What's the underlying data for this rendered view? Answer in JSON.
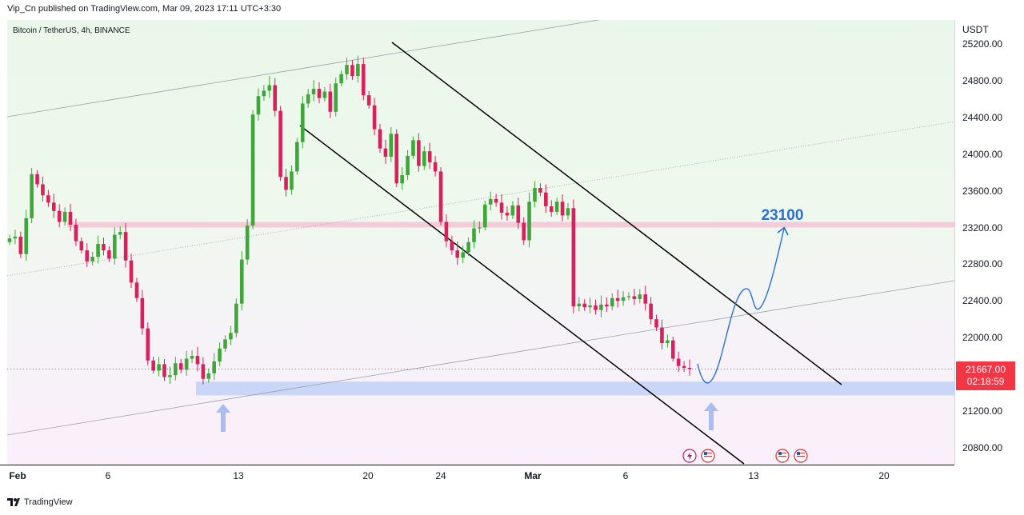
{
  "header": {
    "published_by": "Vip_Cn published on TradingView.com, Mar 09, 2023 17:11 UTC+3:30",
    "symbol_title": "Bitcoin / TetherUS, 4h, BINANCE"
  },
  "footer": {
    "brand": "TradingView"
  },
  "chart_data": {
    "type": "candlestick",
    "title": "Bitcoin / TetherUS, 4h, BINANCE",
    "currency": "USDT",
    "ylim": [
      20700,
      25420
    ],
    "y_ticks": [
      "25200.00",
      "24800.00",
      "24400.00",
      "24000.00",
      "23600.00",
      "23200.00",
      "22800.00",
      "22400.00",
      "22000.00",
      "21200.00",
      "20800.00"
    ],
    "x_ticks": [
      "Feb",
      "6",
      "13",
      "20",
      "24",
      "Mar",
      "6",
      "13",
      "20"
    ],
    "last_price": "21667.00",
    "countdown": "02:18:59",
    "target_label": "23100",
    "resistance_zone": [
      23210,
      23270
    ],
    "support_zone": [
      21380,
      21530
    ],
    "colors": {
      "up": "#26a69a",
      "up_green": "#3fa63a",
      "down": "#d91f5c",
      "target_text": "#2a6fd6",
      "arrow": "#a9bdf0"
    },
    "ohlc_path_close": [
      23090,
      23110,
      22920,
      23310,
      23790,
      23680,
      23560,
      23480,
      23390,
      23270,
      23380,
      23240,
      23060,
      22960,
      22840,
      22890,
      23030,
      22960,
      22870,
      23130,
      23160,
      22850,
      22610,
      22440,
      22110,
      21760,
      21650,
      21720,
      21580,
      21600,
      21730,
      21660,
      21780,
      21810,
      21720,
      21560,
      21620,
      21750,
      21890,
      21990,
      22060,
      22380,
      22860,
      23230,
      24440,
      24640,
      24700,
      24760,
      24480,
      23760,
      23620,
      23820,
      24140,
      24560,
      24660,
      24720,
      24620,
      24690,
      24470,
      24780,
      24880,
      24980,
      24860,
      24990,
      24650,
      24540,
      24280,
      24070,
      23980,
      24230,
      23690,
      23780,
      23990,
      24160,
      23880,
      24040,
      23920,
      23820,
      23270,
      23060,
      22960,
      22880,
      22940,
      23050,
      23200,
      23210,
      23460,
      23520,
      23480,
      23370,
      23340,
      23450,
      23260,
      23070,
      23490,
      23640,
      23590,
      23440,
      23380,
      23490,
      23340,
      23420,
      22350,
      22380,
      22340,
      22360,
      22310,
      22370,
      22350,
      22440,
      22410,
      22450,
      22460,
      22430,
      22480,
      22380,
      22210,
      22120,
      21950,
      21980,
      21780,
      21700,
      21680,
      21667
    ]
  }
}
